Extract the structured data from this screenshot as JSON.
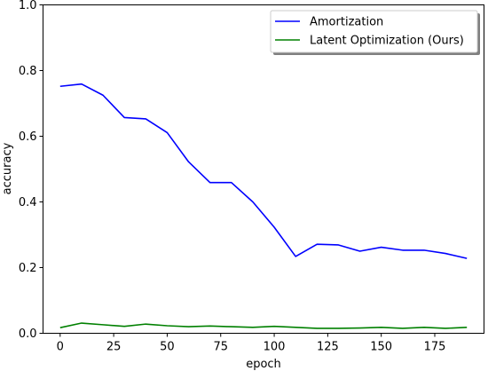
{
  "chart_data": {
    "type": "line",
    "title": "",
    "xlabel": "epoch",
    "ylabel": "accuracy",
    "xlim": [
      -8,
      198
    ],
    "ylim": [
      0,
      1.0
    ],
    "xticks": [
      0,
      25,
      50,
      75,
      100,
      125,
      150,
      175
    ],
    "xtick_labels": [
      "0",
      "25",
      "50",
      "75",
      "100",
      "125",
      "150",
      "175"
    ],
    "yticks": [
      0.0,
      0.2,
      0.4,
      0.6,
      0.8,
      1.0
    ],
    "ytick_labels": [
      "0.0",
      "0.2",
      "0.4",
      "0.6",
      "0.8",
      "1.0"
    ],
    "grid": false,
    "legend_position": "top-right",
    "x": [
      0,
      10,
      20,
      30,
      40,
      50,
      60,
      70,
      80,
      90,
      100,
      110,
      120,
      130,
      140,
      150,
      160,
      170,
      180,
      190
    ],
    "series": [
      {
        "name": "Amortization",
        "color": "#0000ff",
        "values": [
          0.752,
          0.759,
          0.725,
          0.657,
          0.653,
          0.611,
          0.522,
          0.459,
          0.459,
          0.4,
          0.323,
          0.234,
          0.271,
          0.269,
          0.25,
          0.262,
          0.253,
          0.253,
          0.243,
          0.228
        ]
      },
      {
        "name": "Latent Optimization (Ours)",
        "color": "#008000",
        "values": [
          0.017,
          0.031,
          0.026,
          0.021,
          0.028,
          0.023,
          0.02,
          0.022,
          0.02,
          0.018,
          0.021,
          0.018,
          0.015,
          0.015,
          0.016,
          0.018,
          0.015,
          0.018,
          0.015,
          0.018
        ]
      }
    ]
  }
}
